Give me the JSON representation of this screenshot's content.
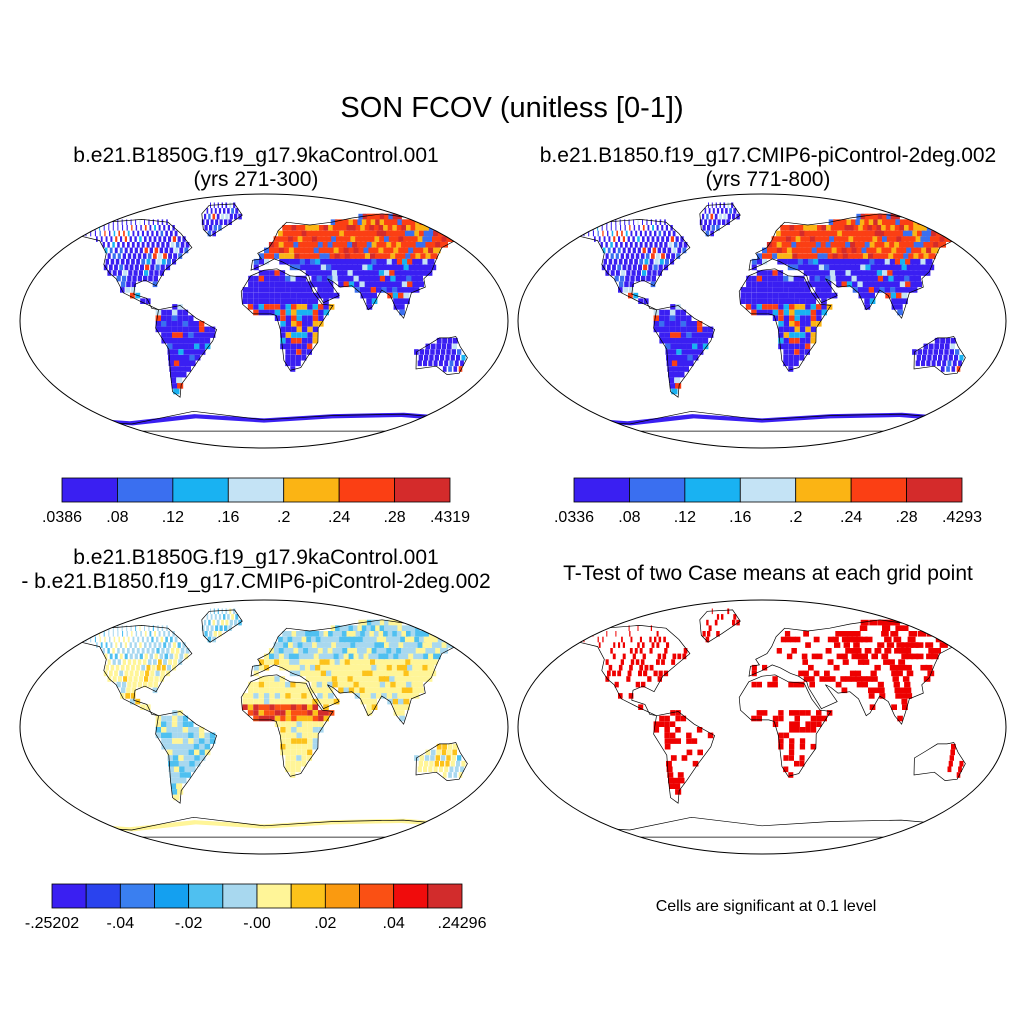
{
  "title": "SON FCOV (unitless [0-1])",
  "panels": [
    {
      "id": "case1",
      "line1": "b.e21.B1850G.f19_g17.9kaControl.001",
      "line2": "(yrs 271-300)",
      "colorbar": {
        "colors": [
          "#3a1ff2",
          "#3a6ff0",
          "#19b2f2",
          "#c4e3f5",
          "#fbb414",
          "#fb3f14",
          "#d42b2b"
        ],
        "labels": [
          ".0386",
          ".08",
          ".12",
          ".16",
          ".2",
          ".24",
          ".28",
          ".4319"
        ]
      }
    },
    {
      "id": "case2",
      "line1": "b.e21.B1850.f19_g17.CMIP6-piControl-2deg.002",
      "line2": "(yrs 771-800)",
      "colorbar": {
        "colors": [
          "#3a1ff2",
          "#3a6ff0",
          "#19b2f2",
          "#c4e3f5",
          "#fbb414",
          "#fb3f14",
          "#d42b2b"
        ],
        "labels": [
          ".0336",
          ".08",
          ".12",
          ".16",
          ".2",
          ".24",
          ".28",
          ".4293"
        ]
      }
    },
    {
      "id": "diff",
      "line1": "b.e21.B1850G.f19_g17.9kaControl.001",
      "line2": "- b.e21.B1850.f19_g17.CMIP6-piControl-2deg.002",
      "colorbar": {
        "colors": [
          "#3a1ff2",
          "#2a43ee",
          "#3a7ff0",
          "#14a0f0",
          "#4fc0f0",
          "#a8d8ef",
          "#fff598",
          "#fcc21a",
          "#fa9a10",
          "#fa5014",
          "#f00c0c",
          "#d22c2c"
        ],
        "labels": [
          "-.25202",
          "-.04",
          "-.02",
          "-.00",
          ".02",
          ".04",
          ".24296"
        ]
      }
    },
    {
      "id": "ttest",
      "line1": "T-Test of two Case means at each grid point",
      "line2": ""
    }
  ],
  "note": "Cells are significant at 0.1 level",
  "map_colors": {
    "case_low": "#3a1ff2",
    "case_high": "#fb3f14",
    "diff_base": "#fff598",
    "diff_neg": "#a8d8ef",
    "diff_pos": "#d42b2b",
    "signif": "#ee0000"
  }
}
